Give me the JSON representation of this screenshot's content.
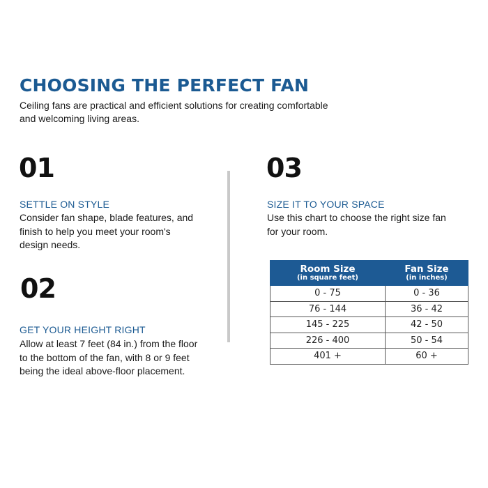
{
  "title": "CHOOSING THE PERFECT FAN",
  "intro": "Ceiling fans are practical and efficient solutions for creating comfortable and welcoming living areas.",
  "steps": [
    {
      "number": "01",
      "heading": "SETTLE ON STYLE",
      "body": "Consider fan shape, blade features, and finish to help you meet your room's design needs."
    },
    {
      "number": "02",
      "heading": "GET YOUR HEIGHT RIGHT",
      "body": "Allow at least 7 feet (84 in.) from the floor to the bottom of the fan, with 8 or 9 feet being the ideal above-floor placement."
    },
    {
      "number": "03",
      "heading": "SIZE IT TO YOUR SPACE",
      "body": "Use this chart to choose the right size fan for your room."
    }
  ],
  "table": {
    "headers": [
      {
        "label": "Room Size",
        "sub": "(in square feet)"
      },
      {
        "label": "Fan Size",
        "sub": "(in inches)"
      }
    ],
    "rows": [
      [
        "0 - 75",
        "0 - 36"
      ],
      [
        "76 - 144",
        "36 - 42"
      ],
      [
        "145 - 225",
        "42 - 50"
      ],
      [
        "226 - 400",
        "50 - 54"
      ],
      [
        "401 +",
        "60 +"
      ]
    ]
  },
  "colors": {
    "accent": "#1b5a92",
    "header_bg": "#1d5a94",
    "divider": "#c9c9c9"
  }
}
